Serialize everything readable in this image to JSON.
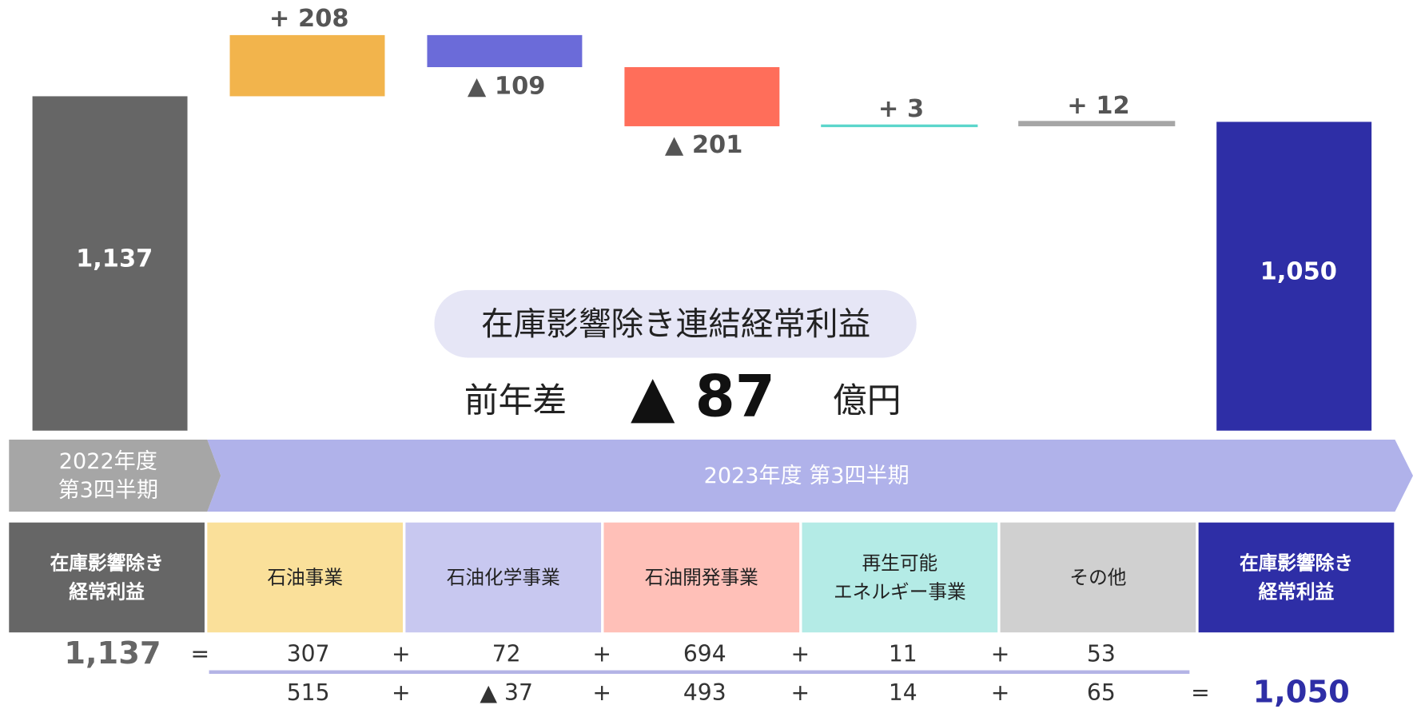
{
  "chart_data": {
    "type": "waterfall",
    "categories": [
      "在庫影響除き\n経常利益",
      "石油事業",
      "石油化学事業",
      "石油開発事業",
      "再生可能\nエネルギー事業",
      "その他",
      "在庫影響除き\n経常利益"
    ],
    "measure": [
      "absolute",
      "relative",
      "relative",
      "relative",
      "relative",
      "relative",
      "total"
    ],
    "values": [
      1137,
      208,
      -109,
      -201,
      3,
      12,
      1050
    ],
    "value_labels": [
      "1,137",
      "+ 208",
      "▲ 109",
      "▲ 201",
      "+ 3",
      "+ 12",
      "1,050"
    ],
    "colors": [
      "#666666",
      "#f2b44c",
      "#6b6bd9",
      "#ff6e5a",
      "#5cd6cc",
      "#a6a6a6",
      "#2e2ea6"
    ],
    "header_colors": [
      "#666666",
      "#fae09a",
      "#c8c8f0",
      "#ffc0b8",
      "#b4ebe6",
      "#d0d0d0",
      "#2e2ea6"
    ],
    "ylim": [
      0,
      1400
    ],
    "summary": {
      "title": "在庫影響除き連結経常利益",
      "prefix": "前年差",
      "difference": "▲ 87",
      "unit": "億円"
    },
    "periods": [
      "2022年度\n第3四半期",
      "2023年度 第3四半期"
    ],
    "breakdown": [
      [
        "1,137",
        "=",
        "307",
        "+",
        "72",
        "+",
        "694",
        "+",
        "11",
        "+",
        "53"
      ],
      [
        "515",
        "+",
        "▲ 37",
        "+",
        "493",
        "+",
        "14",
        "+",
        "65",
        "=",
        "1,050"
      ]
    ]
  }
}
